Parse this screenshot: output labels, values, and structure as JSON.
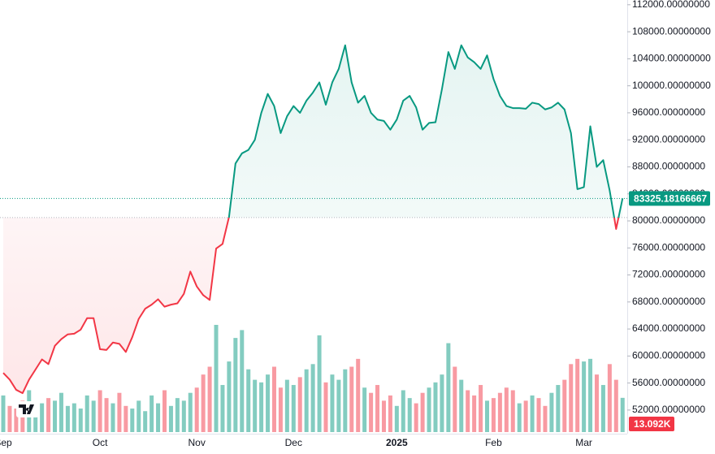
{
  "chart_data": {
    "type": "baseline",
    "categories": [
      "Sep",
      null,
      null,
      null,
      null,
      null,
      null,
      null,
      null,
      null,
      null,
      null,
      null,
      null,
      null,
      "Oct",
      null,
      null,
      null,
      null,
      null,
      null,
      null,
      null,
      null,
      null,
      null,
      null,
      null,
      null,
      "Nov",
      null,
      null,
      null,
      null,
      null,
      null,
      null,
      null,
      null,
      null,
      null,
      null,
      null,
      null,
      "Dec",
      null,
      null,
      null,
      null,
      null,
      null,
      null,
      null,
      null,
      null,
      null,
      null,
      null,
      null,
      null,
      "2025",
      null,
      null,
      null,
      null,
      null,
      null,
      null,
      null,
      null,
      null,
      null,
      null,
      null,
      null,
      "Feb",
      null,
      null,
      null,
      null,
      null,
      null,
      null,
      null,
      null,
      null,
      null,
      null,
      null,
      "Mar",
      null,
      null,
      null,
      null,
      null,
      null
    ],
    "values": [
      57500,
      56500,
      55000,
      54500,
      56500,
      58000,
      59500,
      58800,
      61500,
      62500,
      63200,
      63300,
      63900,
      65600,
      65600,
      61000,
      60900,
      62000,
      61800,
      60600,
      62800,
      65500,
      67000,
      67600,
      68400,
      67300,
      67600,
      67800,
      69200,
      72500,
      70300,
      69000,
      68300,
      75900,
      76600,
      80600,
      88500,
      90000,
      90500,
      92000,
      96000,
      98800,
      97000,
      93000,
      95500,
      97000,
      96000,
      97800,
      99000,
      100500,
      97200,
      100500,
      102500,
      106000,
      100500,
      97500,
      98500,
      96000,
      95000,
      94800,
      93500,
      95000,
      97800,
      98500,
      96800,
      93500,
      94500,
      94600,
      99500,
      105000,
      102500,
      106000,
      104200,
      103500,
      102500,
      104500,
      101000,
      98500,
      97000,
      96700,
      96700,
      96600,
      97500,
      97300,
      96500,
      96800,
      97500,
      96500,
      93000,
      84700,
      85000,
      94000,
      88000,
      89000,
      84500,
      78800,
      83325.18166667
    ],
    "baseline": 80500,
    "up_color": "#089981",
    "down_color": "#f23645",
    "volume": {
      "values": [
        14,
        10,
        9,
        12,
        16,
        8,
        11,
        13,
        12,
        15,
        10,
        11,
        9,
        14,
        12,
        16,
        13,
        11,
        15,
        10,
        9,
        12,
        8,
        14,
        11,
        16,
        10,
        13,
        12,
        15,
        17,
        22,
        25,
        41,
        18,
        27,
        36,
        39,
        24,
        20,
        19,
        22,
        25,
        17,
        20,
        18,
        21,
        24,
        26,
        37,
        19,
        22,
        20,
        24,
        25,
        28,
        17,
        15,
        18,
        12,
        14,
        10,
        16,
        13,
        11,
        15,
        17,
        19,
        22,
        34,
        25,
        20,
        16,
        14,
        18,
        12,
        13,
        15,
        17,
        16,
        11,
        12,
        14,
        13,
        10,
        15,
        18,
        20,
        26,
        28,
        27,
        28,
        22,
        18,
        26,
        20,
        13.092
      ],
      "value_labels": [
        null,
        null,
        null,
        null,
        null,
        null,
        null,
        null,
        null,
        null,
        null,
        null,
        null,
        null,
        null,
        null,
        null,
        null,
        null,
        null,
        null,
        null,
        null,
        null,
        null,
        null,
        null,
        null,
        null,
        null,
        null,
        null,
        null,
        null,
        null,
        null,
        null,
        null,
        null,
        null,
        null,
        null,
        null,
        null,
        null,
        null,
        null,
        null,
        null,
        null,
        null,
        null,
        null,
        null,
        null,
        null,
        null,
        null,
        null,
        null,
        null,
        null,
        null,
        null,
        null,
        null,
        null,
        null,
        null,
        null,
        null,
        null,
        null,
        null,
        null,
        null,
        null,
        null,
        null,
        null,
        null,
        null,
        null,
        null,
        null,
        null,
        null,
        null,
        null,
        null,
        null,
        null,
        null,
        null,
        null,
        null,
        "13.092K"
      ],
      "up_color": "rgba(8,153,129,0.5)",
      "down_color": "rgba(242,54,69,0.5)"
    },
    "ylim": [
      48500,
      112700
    ],
    "yticks": [
      {
        "value": 52000,
        "label": "52000.00000000"
      },
      {
        "value": 56000,
        "label": "56000.00000000"
      },
      {
        "value": 60000,
        "label": "60000.00000000"
      },
      {
        "value": 64000,
        "label": "64000.00000000"
      },
      {
        "value": 68000,
        "label": "68000.00000000"
      },
      {
        "value": 72000,
        "label": "72000.00000000"
      },
      {
        "value": 76000,
        "label": "76000.00000000"
      },
      {
        "value": 80000,
        "label": "80000.00000000"
      },
      {
        "value": 84000,
        "label": "84000.00000000"
      },
      {
        "value": 88000,
        "label": "88000.00000000"
      },
      {
        "value": 92000,
        "label": "92000.00000000"
      },
      {
        "value": 96000,
        "label": "96000.00000000"
      },
      {
        "value": 100000,
        "label": "100000.00000000"
      },
      {
        "value": 104000,
        "label": "104000.00000000"
      },
      {
        "value": 108000,
        "label": "108000.00000000"
      },
      {
        "value": 112000,
        "label": "112000.00000000"
      }
    ],
    "grid": false
  }
}
